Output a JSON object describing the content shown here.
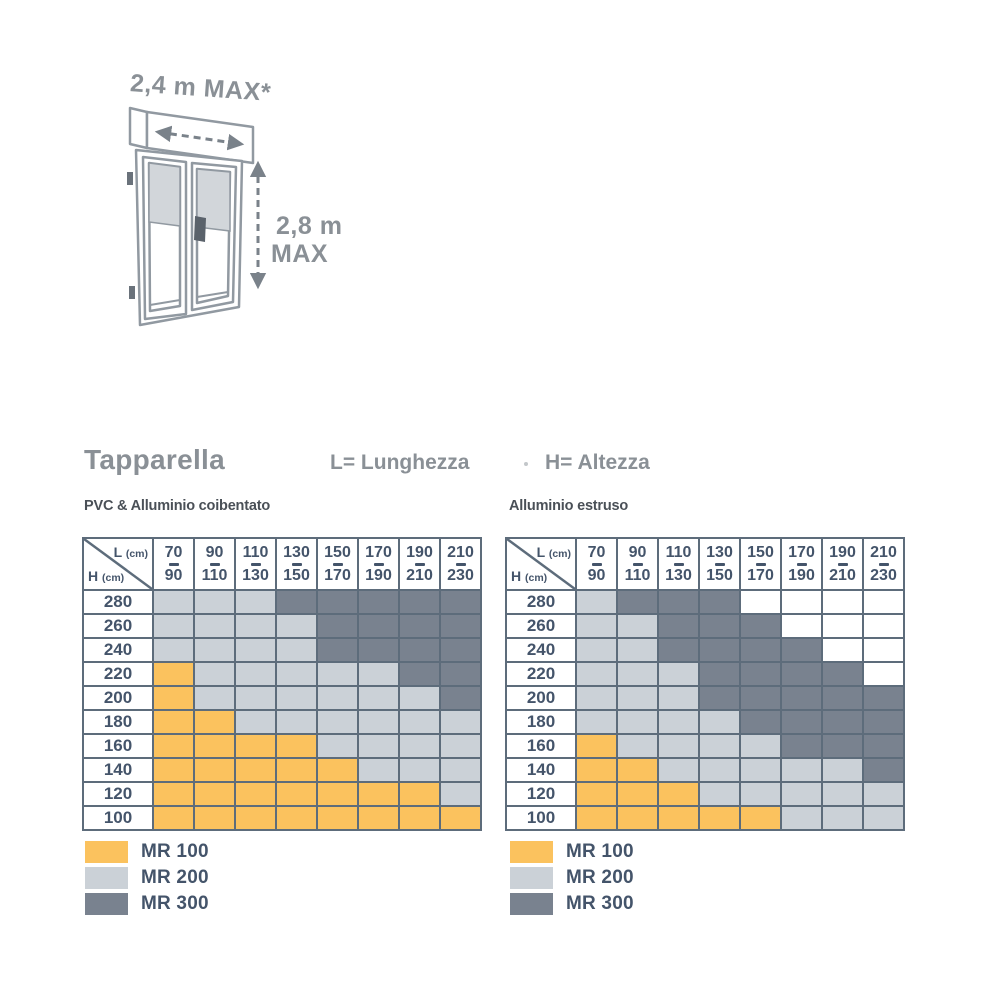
{
  "diagram": {
    "width_label": "2,4 m MAX*",
    "height_label_line1": "2,8 m",
    "height_label_line2": "MAX"
  },
  "titles": {
    "section": "Tapparella",
    "length_def": "L= Lunghezza",
    "height_def": "H= Altezza"
  },
  "axis": {
    "col": "L",
    "row": "H",
    "unit": "(cm)"
  },
  "columns": [
    {
      "from": "70",
      "to": "90"
    },
    {
      "from": "90",
      "to": "110"
    },
    {
      "from": "110",
      "to": "130"
    },
    {
      "from": "130",
      "to": "150"
    },
    {
      "from": "150",
      "to": "170"
    },
    {
      "from": "170",
      "to": "190"
    },
    {
      "from": "190",
      "to": "210"
    },
    {
      "from": "210",
      "to": "230"
    }
  ],
  "rows": [
    "280",
    "260",
    "240",
    "220",
    "200",
    "180",
    "160",
    "140",
    "120",
    "100"
  ],
  "tables": [
    {
      "subtitle": "PVC & Alluminio coibentato",
      "cells": [
        [
          2,
          2,
          2,
          3,
          3,
          3,
          3,
          3
        ],
        [
          2,
          2,
          2,
          2,
          3,
          3,
          3,
          3
        ],
        [
          2,
          2,
          2,
          2,
          3,
          3,
          3,
          3
        ],
        [
          1,
          2,
          2,
          2,
          2,
          2,
          3,
          3
        ],
        [
          1,
          2,
          2,
          2,
          2,
          2,
          2,
          3
        ],
        [
          1,
          1,
          2,
          2,
          2,
          2,
          2,
          2
        ],
        [
          1,
          1,
          1,
          1,
          2,
          2,
          2,
          2
        ],
        [
          1,
          1,
          1,
          1,
          1,
          2,
          2,
          2
        ],
        [
          1,
          1,
          1,
          1,
          1,
          1,
          1,
          2
        ],
        [
          1,
          1,
          1,
          1,
          1,
          1,
          1,
          1
        ]
      ]
    },
    {
      "subtitle": "Alluminio estruso",
      "cells": [
        [
          2,
          3,
          3,
          3,
          0,
          0,
          0,
          0
        ],
        [
          2,
          2,
          3,
          3,
          3,
          0,
          0,
          0
        ],
        [
          2,
          2,
          3,
          3,
          3,
          3,
          0,
          0
        ],
        [
          2,
          2,
          2,
          3,
          3,
          3,
          3,
          0
        ],
        [
          2,
          2,
          2,
          3,
          3,
          3,
          3,
          3
        ],
        [
          2,
          2,
          2,
          2,
          3,
          3,
          3,
          3
        ],
        [
          1,
          2,
          2,
          2,
          2,
          3,
          3,
          3
        ],
        [
          1,
          1,
          2,
          2,
          2,
          2,
          2,
          3
        ],
        [
          1,
          1,
          1,
          2,
          2,
          2,
          2,
          2
        ],
        [
          1,
          1,
          1,
          1,
          1,
          2,
          2,
          2
        ]
      ]
    }
  ],
  "legend": [
    {
      "label": "MR 100",
      "color": "#FBC25E"
    },
    {
      "label": "MR 200",
      "color": "#CBD1D7"
    },
    {
      "label": "MR 300",
      "color": "#79828F"
    }
  ],
  "colors": {
    "cell_none": "#FFFFFF",
    "border": "#5D6C7B",
    "table_text": "#44546A",
    "muted_text": "#8A9096",
    "subtitle_text": "#4A5057",
    "diagram_stroke": "#9199A1",
    "shutter_fill": "#D2D6DA",
    "arrow": "#7A828A"
  }
}
